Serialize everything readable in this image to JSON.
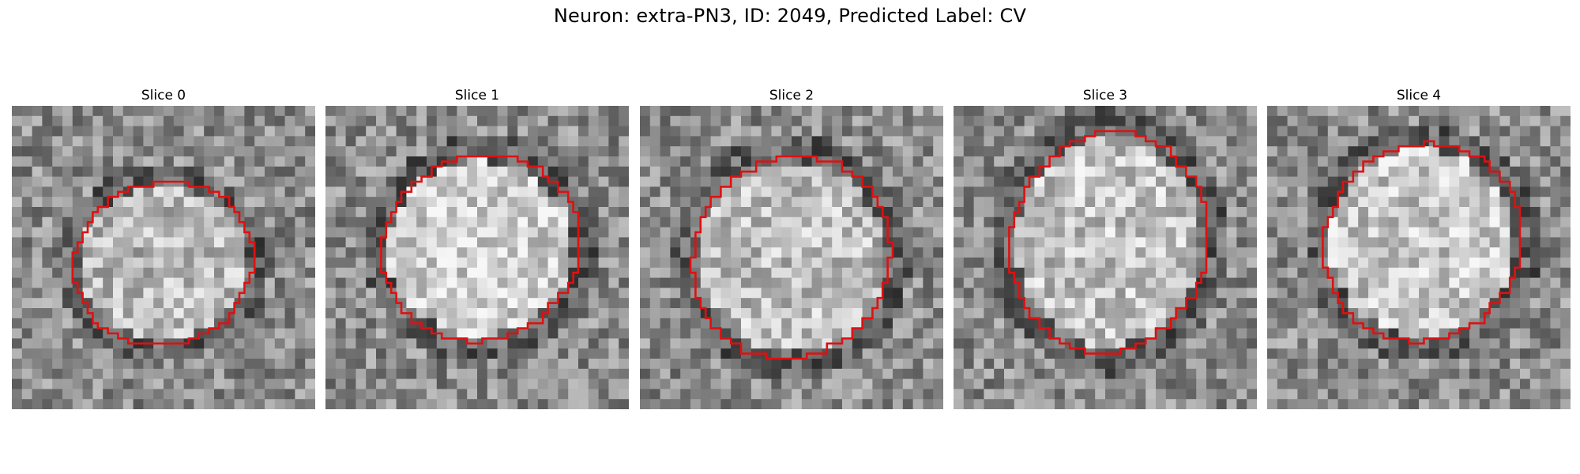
{
  "figure": {
    "title": "Neuron: extra-PN3, ID: 2049, Predicted Label: CV"
  },
  "slices": [
    {
      "title": "Slice 0",
      "seed": 11,
      "center": [
        0.5,
        0.52
      ],
      "radius": [
        0.31,
        0.28
      ],
      "brightness": 0.72
    },
    {
      "title": "Slice 1",
      "seed": 23,
      "center": [
        0.51,
        0.47
      ],
      "radius": [
        0.34,
        0.32
      ],
      "brightness": 0.82
    },
    {
      "title": "Slice 2",
      "seed": 37,
      "center": [
        0.5,
        0.5
      ],
      "radius": [
        0.34,
        0.35
      ],
      "brightness": 0.74
    },
    {
      "title": "Slice 3",
      "seed": 53,
      "center": [
        0.51,
        0.45
      ],
      "radius": [
        0.34,
        0.38
      ],
      "brightness": 0.76
    },
    {
      "title": "Slice 4",
      "seed": 71,
      "center": [
        0.51,
        0.45
      ],
      "radius": [
        0.34,
        0.34
      ],
      "brightness": 0.78
    }
  ],
  "colors": {
    "contour": "#e01010",
    "background": "#ffffff"
  }
}
